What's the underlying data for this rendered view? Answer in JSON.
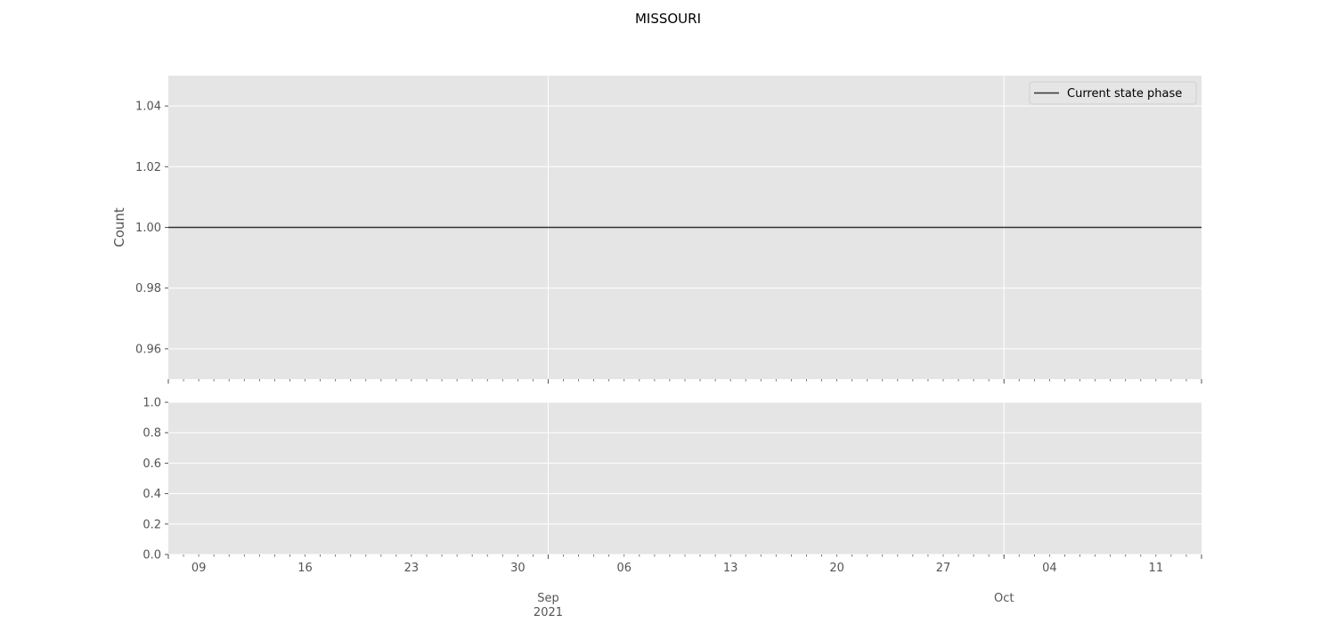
{
  "chart_data": [
    {
      "type": "line",
      "title": "MISSOURI",
      "ylabel": "Count",
      "xlim": [
        "2021-08-07",
        "2021-10-14"
      ],
      "ylim": [
        0.95,
        1.05
      ],
      "yticks": [
        0.96,
        0.98,
        1.0,
        1.02,
        1.04
      ],
      "ytick_labels": [
        "0.96",
        "0.98",
        "1.00",
        "1.02",
        "1.04"
      ],
      "grid": true,
      "legend_position": "top-right",
      "series": [
        {
          "name": "Current state phase",
          "color": "#333333",
          "x": [
            "2021-08-07",
            "2021-10-14"
          ],
          "y": [
            1.0,
            1.0
          ]
        }
      ]
    },
    {
      "type": "line",
      "xlim": [
        "2021-08-07",
        "2021-10-14"
      ],
      "ylim": [
        0.0,
        1.0
      ],
      "yticks": [
        0.0,
        0.2,
        0.4,
        0.6,
        0.8,
        1.0
      ],
      "ytick_labels": [
        "0.0",
        "0.2",
        "0.4",
        "0.6",
        "0.8",
        "1.0"
      ],
      "grid": true,
      "series": [],
      "xticks_minor": [
        {
          "date": "2021-08-09",
          "label": "09"
        },
        {
          "date": "2021-08-16",
          "label": "16"
        },
        {
          "date": "2021-08-23",
          "label": "23"
        },
        {
          "date": "2021-08-30",
          "label": "30"
        },
        {
          "date": "2021-09-06",
          "label": "06"
        },
        {
          "date": "2021-09-13",
          "label": "13"
        },
        {
          "date": "2021-09-20",
          "label": "20"
        },
        {
          "date": "2021-09-27",
          "label": "27"
        },
        {
          "date": "2021-10-04",
          "label": "04"
        },
        {
          "date": "2021-10-11",
          "label": "11"
        }
      ],
      "xticks_major": [
        {
          "date": "2021-09-01",
          "label": "Sep",
          "sublabel": "2021"
        },
        {
          "date": "2021-10-01",
          "label": "Oct",
          "sublabel": ""
        }
      ]
    }
  ],
  "colors": {
    "axes_bg": "#e5e5e5",
    "grid": "#ffffff",
    "tick_text": "#555555",
    "line": "#333333"
  }
}
